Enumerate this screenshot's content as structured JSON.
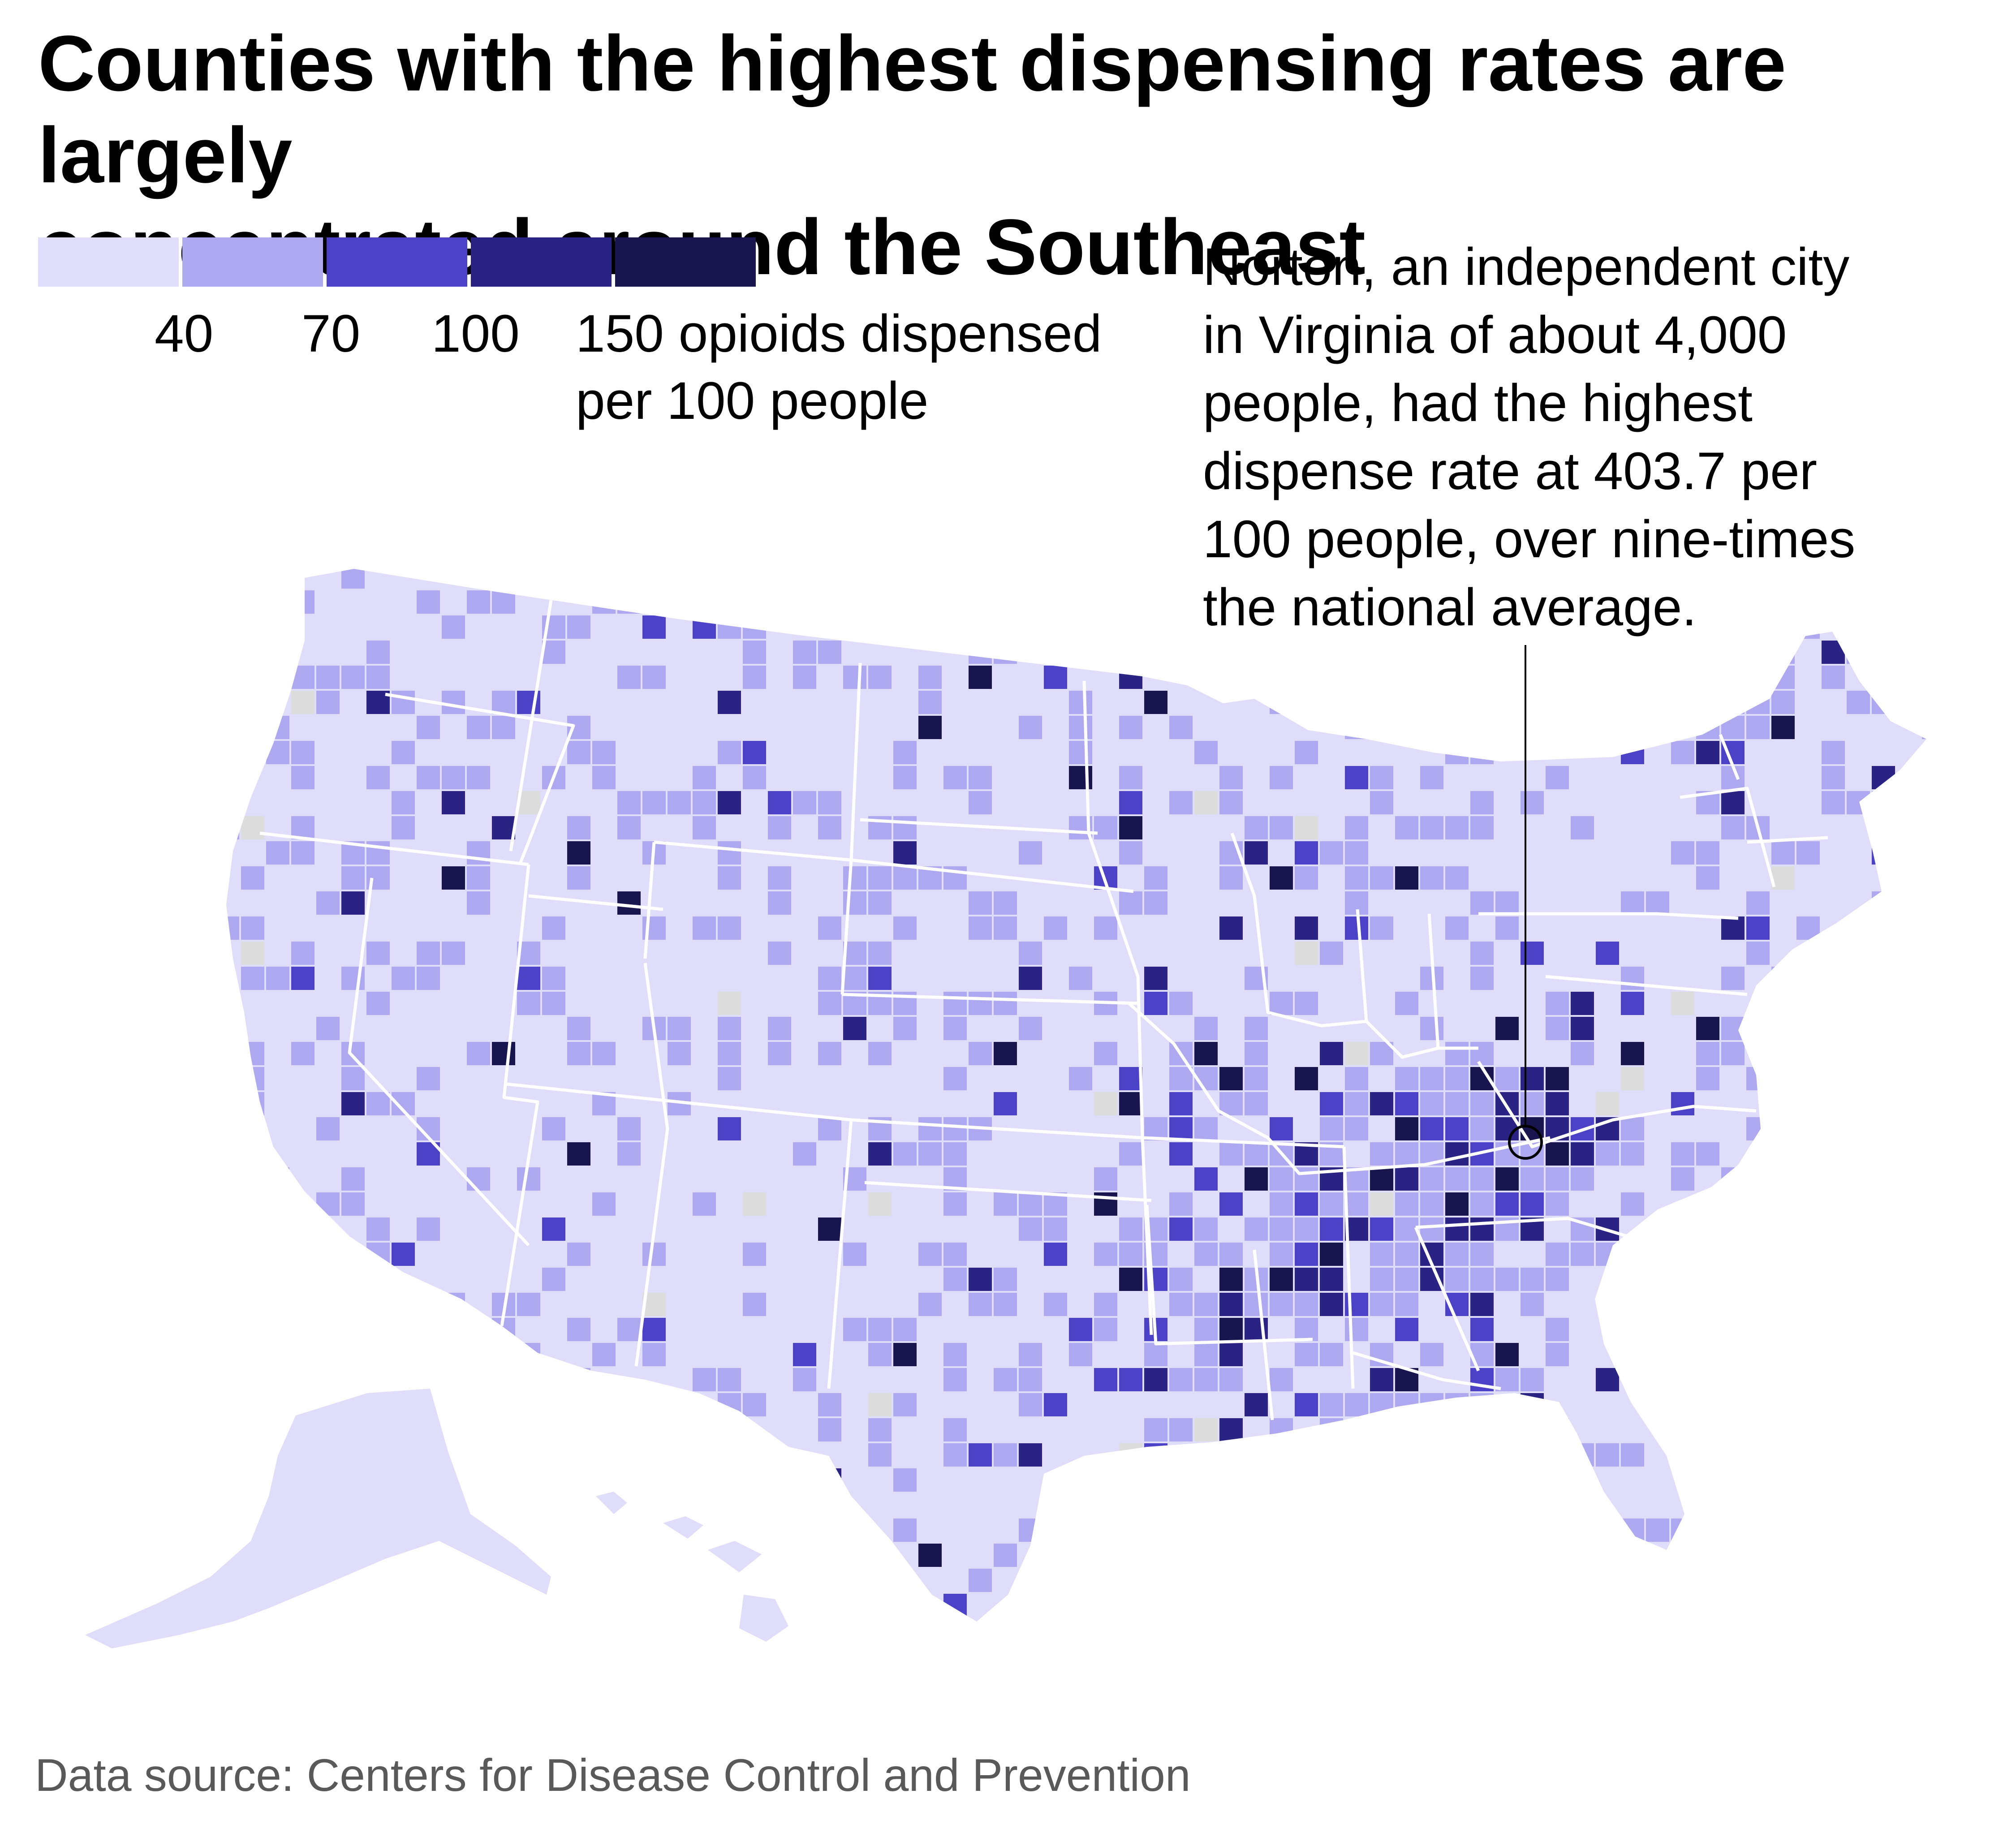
{
  "title": {
    "line1": "Counties with the highest dispensing rates are largely",
    "line2": "concentrated around the Southeast"
  },
  "legend": {
    "colors": [
      "#e0ddfa",
      "#aea8f1",
      "#4b42c8",
      "#2a2384",
      "#19164f"
    ],
    "thresholds": [
      "40",
      "70",
      "100",
      "150 opioids dispensed"
    ],
    "unit_line2": "per 100 people"
  },
  "annotation": {
    "lines": [
      "Norton, an independent city",
      "in Virginia of about 4,000",
      "people, had the highest",
      "dispense rate at 403.7 per",
      "100 people, over nine-times",
      "the national average."
    ]
  },
  "map_data": {
    "type": "choropleth",
    "geography": "US counties",
    "no_data_color": "#dcdcdc",
    "highlight": {
      "name": "Norton",
      "state": "Virginia",
      "rate": 403.7
    }
  },
  "source": "Data source: Centers for Disease Control and Prevention"
}
